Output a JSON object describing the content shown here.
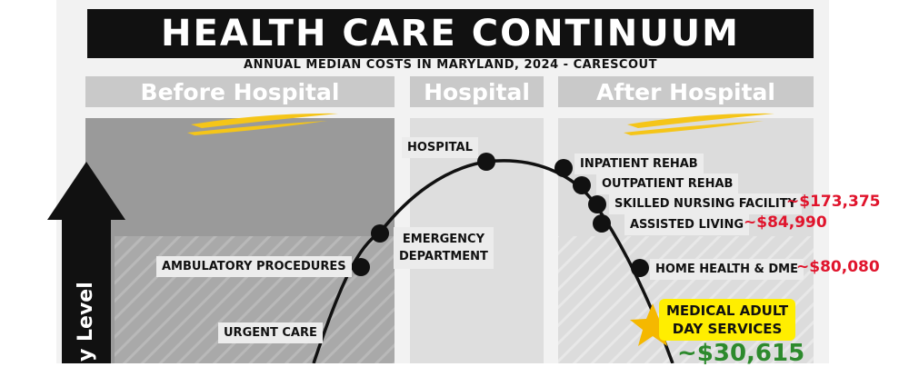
{
  "title": "HEALTH CARE CONTINUUM",
  "subtitle": "ANNUAL MEDIAN COSTS IN MARYLAND, 2024 - CARESCOUT",
  "headers": {
    "before": "Before Hospital",
    "hospital": "Hospital",
    "after": "After Hospital"
  },
  "axis_label": "y Level",
  "stages": {
    "urgent_care": "URGENT CARE",
    "ambulatory": "AMBULATORY PROCEDURES",
    "emergency_1": "EMERGENCY",
    "emergency_2": "DEPARTMENT",
    "hospital": "HOSPITAL",
    "inpatient_rehab": "INPATIENT REHAB",
    "outpatient_rehab": "OUTPATIENT REHAB",
    "skilled_nursing": "SKILLED NURSING FACILITY",
    "assisted_living": "ASSISTED LIVING",
    "home_health": "HOME HEALTH & DME",
    "adult_day_1": "MEDICAL ADULT",
    "adult_day_2": "DAY SERVICES"
  },
  "costs": {
    "skilled_nursing": "~$173,375",
    "assisted_living": "~$84,990",
    "home_health": "~$80,080",
    "adult_day": "~$30,615"
  },
  "colors": {
    "accent_yellow": "#f5c518",
    "cost_red": "#e0142c",
    "cost_green": "#2d8a2d",
    "highlight_yellow": "#ffee00"
  }
}
